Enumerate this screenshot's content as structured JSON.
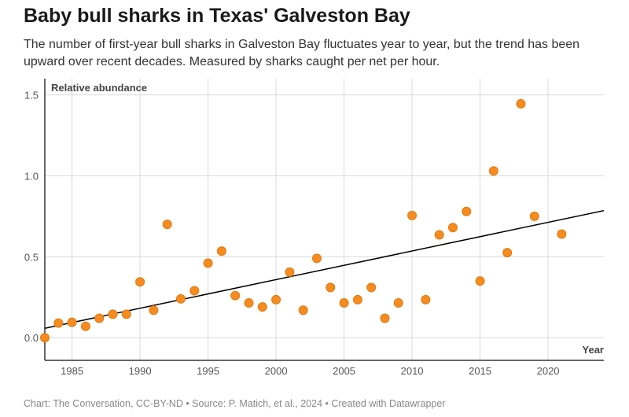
{
  "title": "Baby bull sharks in Texas' Galveston Bay",
  "subtitle": "The number of first-year bull sharks in Galveston Bay fluctuates year to year, but the trend has been upward over recent decades. Measured by sharks caught per net per hour.",
  "footer": "Chart: The Conversation, CC-BY-ND • Source: P. Matich, et al., 2024 • Created with Datawrapper",
  "chart_data": {
    "type": "scatter",
    "xlabel": "Year",
    "ylabel": "Relative abundance",
    "xlim": [
      1983,
      2024.1
    ],
    "ylim": [
      -0.14,
      1.6
    ],
    "x_ticks": [
      1985,
      1990,
      1995,
      2000,
      2005,
      2010,
      2015,
      2020
    ],
    "y_ticks": [
      0.0,
      0.5,
      1.0,
      1.5
    ],
    "y_tick_labels": [
      "0.0",
      "0.5",
      "1.0",
      "1.5"
    ],
    "grid": true,
    "point_color": "#f68b1f",
    "trendline_color": "#000000",
    "points": [
      {
        "x": 1983,
        "y": 0.0
      },
      {
        "x": 1984,
        "y": 0.09
      },
      {
        "x": 1985,
        "y": 0.095
      },
      {
        "x": 1986,
        "y": 0.07
      },
      {
        "x": 1987,
        "y": 0.12
      },
      {
        "x": 1988,
        "y": 0.145
      },
      {
        "x": 1989,
        "y": 0.145
      },
      {
        "x": 1990,
        "y": 0.345
      },
      {
        "x": 1991,
        "y": 0.17
      },
      {
        "x": 1992,
        "y": 0.7
      },
      {
        "x": 1993,
        "y": 0.24
      },
      {
        "x": 1994,
        "y": 0.29
      },
      {
        "x": 1995,
        "y": 0.46
      },
      {
        "x": 1996,
        "y": 0.535
      },
      {
        "x": 1997,
        "y": 0.26
      },
      {
        "x": 1998,
        "y": 0.215
      },
      {
        "x": 1999,
        "y": 0.19
      },
      {
        "x": 2000,
        "y": 0.235
      },
      {
        "x": 2001,
        "y": 0.405
      },
      {
        "x": 2002,
        "y": 0.17
      },
      {
        "x": 2003,
        "y": 0.49
      },
      {
        "x": 2004,
        "y": 0.31
      },
      {
        "x": 2005,
        "y": 0.215
      },
      {
        "x": 2006,
        "y": 0.235
      },
      {
        "x": 2007,
        "y": 0.31
      },
      {
        "x": 2008,
        "y": 0.12
      },
      {
        "x": 2009,
        "y": 0.215
      },
      {
        "x": 2010,
        "y": 0.755
      },
      {
        "x": 2011,
        "y": 0.235
      },
      {
        "x": 2012,
        "y": 0.635
      },
      {
        "x": 2013,
        "y": 0.68
      },
      {
        "x": 2014,
        "y": 0.78
      },
      {
        "x": 2015,
        "y": 0.35
      },
      {
        "x": 2016,
        "y": 1.03
      },
      {
        "x": 2017,
        "y": 0.525
      },
      {
        "x": 2018,
        "y": 1.445
      },
      {
        "x": 2019,
        "y": 0.75
      },
      {
        "x": 2021,
        "y": 0.64
      }
    ],
    "trendline": [
      {
        "x": 1983,
        "y": 0.058
      },
      {
        "x": 2024.1,
        "y": 0.785
      }
    ]
  }
}
